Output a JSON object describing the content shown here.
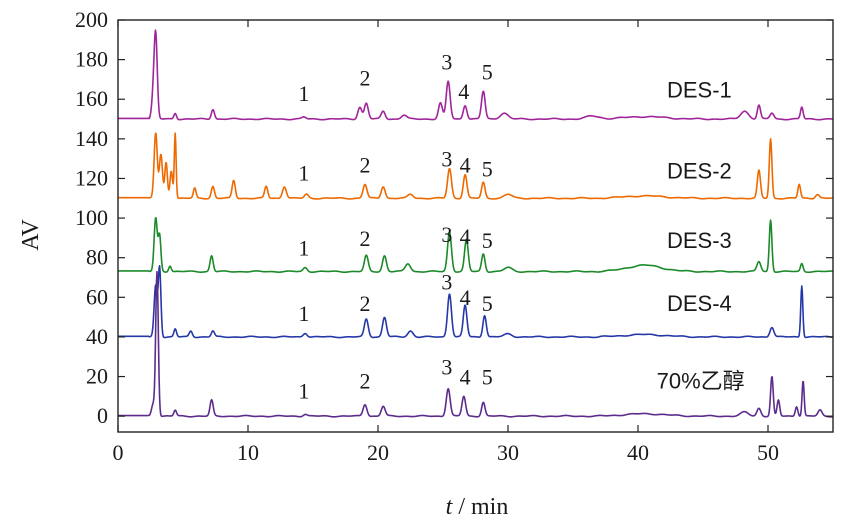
{
  "chart_data": {
    "type": "line",
    "xlabel_var": "t",
    "xlabel_unit": " / min",
    "ylabel": "AV",
    "xlim": [
      0,
      55
    ],
    "ylim": [
      -8,
      200
    ],
    "xticks": [
      0,
      10,
      20,
      30,
      40,
      50
    ],
    "yticks": [
      0,
      20,
      40,
      60,
      80,
      100,
      120,
      140,
      160,
      180,
      200
    ],
    "grid": false,
    "series": [
      {
        "name": "DES-1",
        "color": "#a0249a",
        "baseline": 150,
        "peaks": [
          [
            2.9,
            42,
            0.12
          ],
          [
            2.7,
            10,
            0.12
          ],
          [
            4.4,
            3,
            0.1
          ],
          [
            7.3,
            5,
            0.12
          ],
          [
            14.3,
            1,
            0.15
          ],
          [
            18.6,
            6,
            0.15
          ],
          [
            19.1,
            8,
            0.15
          ],
          [
            20.4,
            4,
            0.15
          ],
          [
            22.0,
            2,
            0.2
          ],
          [
            24.8,
            8,
            0.15
          ],
          [
            25.4,
            19,
            0.15
          ],
          [
            26.7,
            7,
            0.14
          ],
          [
            28.1,
            14,
            0.14
          ],
          [
            29.7,
            3,
            0.3
          ],
          [
            36.5,
            1.5,
            0.5
          ],
          [
            48.2,
            4,
            0.3
          ],
          [
            49.3,
            7,
            0.12
          ],
          [
            50.3,
            3,
            0.15
          ],
          [
            52.6,
            6,
            0.1
          ]
        ],
        "annotations": [
          {
            "text": "1",
            "x": 14.3,
            "y": 159
          },
          {
            "text": "2",
            "x": 19.0,
            "y": 167
          },
          {
            "text": "3",
            "x": 25.3,
            "y": 175
          },
          {
            "text": "4",
            "x": 26.6,
            "y": 160
          },
          {
            "text": "5",
            "x": 28.4,
            "y": 170
          }
        ],
        "label": "DES-1",
        "label_x": 38.0,
        "label_y": 161
      },
      {
        "name": "DES-2",
        "color": "#ee6a00",
        "baseline": 110,
        "peaks": [
          [
            2.9,
            33,
            0.12
          ],
          [
            3.3,
            22,
            0.12
          ],
          [
            3.7,
            18,
            0.1
          ],
          [
            4.1,
            14,
            0.1
          ],
          [
            4.4,
            33,
            0.07
          ],
          [
            5.9,
            5,
            0.1
          ],
          [
            7.3,
            6,
            0.12
          ],
          [
            8.9,
            9,
            0.12
          ],
          [
            11.4,
            6,
            0.12
          ],
          [
            12.8,
            6,
            0.15
          ],
          [
            14.5,
            2,
            0.15
          ],
          [
            19.0,
            7,
            0.15
          ],
          [
            20.4,
            6,
            0.15
          ],
          [
            22.5,
            2,
            0.2
          ],
          [
            25.5,
            15,
            0.15
          ],
          [
            26.7,
            12,
            0.14
          ],
          [
            28.1,
            8,
            0.13
          ],
          [
            30,
            2,
            0.3
          ],
          [
            49.3,
            14,
            0.12
          ],
          [
            50.2,
            30,
            0.1
          ],
          [
            52.4,
            7,
            0.1
          ],
          [
            53.8,
            2,
            0.15
          ]
        ],
        "annotations": [
          {
            "text": "1",
            "x": 14.3,
            "y": 119
          },
          {
            "text": "2",
            "x": 19.0,
            "y": 123
          },
          {
            "text": "3",
            "x": 25.3,
            "y": 126
          },
          {
            "text": "4",
            "x": 26.7,
            "y": 123
          },
          {
            "text": "5",
            "x": 28.4,
            "y": 121
          }
        ],
        "label": "DES-2",
        "label_x": 38.0,
        "label_y": 120
      },
      {
        "name": "DES-3",
        "color": "#1c8a2a",
        "baseline": 73,
        "peaks": [
          [
            2.9,
            27,
            0.12
          ],
          [
            3.2,
            18,
            0.1
          ],
          [
            4.0,
            3,
            0.1
          ],
          [
            7.2,
            8,
            0.12
          ],
          [
            14.4,
            2,
            0.15
          ],
          [
            19.1,
            8,
            0.15
          ],
          [
            20.5,
            8,
            0.15
          ],
          [
            22.3,
            4,
            0.2
          ],
          [
            25.5,
            20,
            0.15
          ],
          [
            26.8,
            16,
            0.14
          ],
          [
            28.1,
            9,
            0.13
          ],
          [
            30,
            2,
            0.3
          ],
          [
            40.5,
            2,
            1.2
          ],
          [
            49.3,
            5,
            0.15
          ],
          [
            50.2,
            26,
            0.1
          ],
          [
            52.6,
            4,
            0.1
          ]
        ],
        "annotations": [
          {
            "text": "1",
            "x": 14.3,
            "y": 81
          },
          {
            "text": "2",
            "x": 19.0,
            "y": 86
          },
          {
            "text": "3",
            "x": 25.3,
            "y": 88
          },
          {
            "text": "4",
            "x": 26.7,
            "y": 87
          },
          {
            "text": "5",
            "x": 28.4,
            "y": 85
          }
        ],
        "label": "DES-3",
        "label_x": 38.0,
        "label_y": 85
      },
      {
        "name": "DES-4",
        "color": "#2638a8",
        "baseline": 40,
        "peaks": [
          [
            2.9,
            26,
            0.12
          ],
          [
            3.2,
            35,
            0.1
          ],
          [
            4.4,
            4,
            0.1
          ],
          [
            5.6,
            3,
            0.12
          ],
          [
            7.3,
            3,
            0.12
          ],
          [
            14.4,
            2,
            0.15
          ],
          [
            19.1,
            9,
            0.15
          ],
          [
            20.5,
            10,
            0.15
          ],
          [
            22.5,
            3,
            0.2
          ],
          [
            25.5,
            22,
            0.15
          ],
          [
            26.7,
            16,
            0.14
          ],
          [
            28.2,
            11,
            0.13
          ],
          [
            30,
            1.5,
            0.3
          ],
          [
            50.3,
            5,
            0.15
          ],
          [
            52.6,
            26,
            0.08
          ]
        ],
        "annotations": [
          {
            "text": "1",
            "x": 14.3,
            "y": 48
          },
          {
            "text": "2",
            "x": 19.0,
            "y": 53
          },
          {
            "text": "3",
            "x": 25.3,
            "y": 64
          },
          {
            "text": "4",
            "x": 26.7,
            "y": 56
          },
          {
            "text": "5",
            "x": 28.4,
            "y": 53
          }
        ],
        "label": "DES-4",
        "label_x": 38.0,
        "label_y": 53
      },
      {
        "name": "70%乙醇",
        "color": "#5b2c8c",
        "baseline": 0,
        "peaks": [
          [
            2.7,
            6,
            0.12
          ],
          [
            3.0,
            73,
            0.1
          ],
          [
            4.4,
            3,
            0.1
          ],
          [
            7.2,
            8,
            0.12
          ],
          [
            14.4,
            1,
            0.15
          ],
          [
            19.0,
            6,
            0.15
          ],
          [
            20.4,
            5,
            0.15
          ],
          [
            25.4,
            14,
            0.15
          ],
          [
            26.6,
            10,
            0.14
          ],
          [
            28.1,
            7,
            0.13
          ],
          [
            48.2,
            2,
            0.3
          ],
          [
            49.3,
            4,
            0.15
          ],
          [
            50.3,
            20,
            0.1
          ],
          [
            50.8,
            8,
            0.1
          ],
          [
            52.2,
            5,
            0.1
          ],
          [
            52.7,
            18,
            0.08
          ],
          [
            54,
            3,
            0.15
          ]
        ],
        "annotations": [
          {
            "text": "1",
            "x": 14.3,
            "y": 9
          },
          {
            "text": "2",
            "x": 19.0,
            "y": 14
          },
          {
            "text": "3",
            "x": 25.3,
            "y": 21
          },
          {
            "text": "4",
            "x": 26.7,
            "y": 16
          },
          {
            "text": "5",
            "x": 28.4,
            "y": 16
          }
        ],
        "label": "70%乙醇",
        "label_x": 37.2,
        "label_y": 14
      }
    ]
  }
}
